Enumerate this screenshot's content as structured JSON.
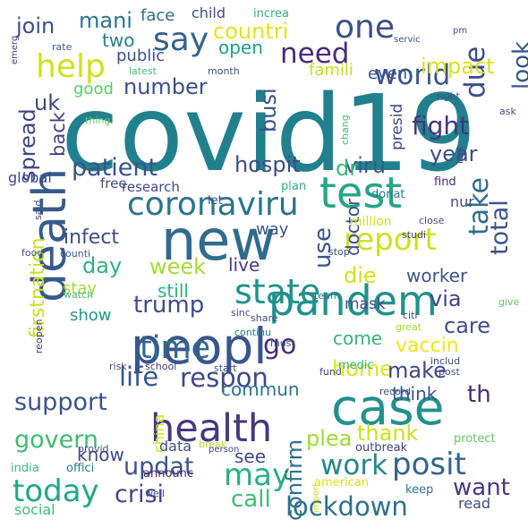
{
  "words": [
    {
      "text": "covid19",
      "color": "#21808d",
      "vertical": false
    },
    {
      "text": "new",
      "color": "#2e6c8e",
      "vertical": false
    },
    {
      "text": "peopl",
      "color": "#39568c",
      "vertical": false
    },
    {
      "text": "case",
      "color": "#22908c",
      "vertical": false
    },
    {
      "text": "test",
      "color": "#24a785",
      "vertical": false
    },
    {
      "text": "death",
      "color": "#375a8c",
      "vertical": true
    },
    {
      "text": "pandem",
      "color": "#22908c",
      "vertical": false
    },
    {
      "text": "health",
      "color": "#453781",
      "vertical": false
    },
    {
      "text": "coronaviru",
      "color": "#2c738e",
      "vertical": false
    },
    {
      "text": "state",
      "color": "#20928c",
      "vertical": false
    },
    {
      "text": "report",
      "color": "#cde11d",
      "vertical": false
    },
    {
      "text": "may",
      "color": "#2ab07f",
      "vertical": false
    },
    {
      "text": "today",
      "color": "#22a785",
      "vertical": false
    },
    {
      "text": "posit",
      "color": "#33638d",
      "vertical": false
    },
    {
      "text": "time",
      "color": "#31688e",
      "vertical": false
    },
    {
      "text": "work",
      "color": "#24878e",
      "vertical": false
    },
    {
      "text": "lockdown",
      "color": "#2c718e",
      "vertical": false
    },
    {
      "text": "respon",
      "color": "#3e4a89",
      "vertical": false
    },
    {
      "text": "life",
      "color": "#39568c",
      "vertical": false
    },
    {
      "text": "support",
      "color": "#3a548c",
      "vertical": false
    },
    {
      "text": "govern",
      "color": "#3fbc73",
      "vertical": false
    },
    {
      "text": "updat",
      "color": "#3b528b",
      "vertical": false
    },
    {
      "text": "crisi",
      "color": "#3f4788",
      "vertical": false
    },
    {
      "text": "call",
      "color": "#3dbc74",
      "vertical": false
    },
    {
      "text": "want",
      "color": "#443a83",
      "vertical": false
    },
    {
      "text": "th",
      "color": "#472c7a",
      "vertical": false
    },
    {
      "text": "plea",
      "color": "#a0da39",
      "vertical": false
    },
    {
      "text": "thank",
      "color": "#cae11f",
      "vertical": false
    },
    {
      "text": "confirm",
      "color": "#2d708e",
      "vertical": true
    },
    {
      "text": "help",
      "color": "#d0e11c",
      "vertical": false
    },
    {
      "text": "say",
      "color": "#33638d",
      "vertical": false
    },
    {
      "text": "one",
      "color": "#3d4e8a",
      "vertical": false
    },
    {
      "text": "need",
      "color": "#472c7a",
      "vertical": false
    },
    {
      "text": "world",
      "color": "#3a548c",
      "vertical": false
    },
    {
      "text": "due",
      "color": "#3e4c8a",
      "vertical": true
    },
    {
      "text": "look",
      "color": "#39568c",
      "vertical": true
    },
    {
      "text": "patient",
      "color": "#3b528b",
      "vertical": false
    },
    {
      "text": "hospit",
      "color": "#3e4989",
      "vertical": false
    },
    {
      "text": "viru",
      "color": "#38598c",
      "vertical": false
    },
    {
      "text": "dr",
      "color": "#35b779",
      "vertical": false
    },
    {
      "text": "fight",
      "color": "#46337f",
      "vertical": false
    },
    {
      "text": "year",
      "color": "#3d4d8a",
      "vertical": false
    },
    {
      "text": "take",
      "color": "#2f6c8e",
      "vertical": true
    },
    {
      "text": "total",
      "color": "#3a548c",
      "vertical": true
    },
    {
      "text": "busi",
      "color": "#3a538b",
      "vertical": true
    },
    {
      "text": "presid",
      "color": "#404588",
      "vertical": true
    },
    {
      "text": "impact",
      "color": "#d8e219",
      "vertical": false
    },
    {
      "text": "join",
      "color": "#3c4f8a",
      "vertical": false
    },
    {
      "text": "mani",
      "color": "#2a768e",
      "vertical": false
    },
    {
      "text": "countri",
      "color": "#e5e419",
      "vertical": false
    },
    {
      "text": "open",
      "color": "#1f9e89",
      "vertical": false
    },
    {
      "text": "face",
      "color": "#306a8e",
      "vertical": false
    },
    {
      "text": "child",
      "color": "#3e4c8a",
      "vertical": false
    },
    {
      "text": "increa",
      "color": "#2db27d",
      "vertical": false
    },
    {
      "text": "two",
      "color": "#2a7b8e",
      "vertical": false
    },
    {
      "text": "public",
      "color": "#3b528b",
      "vertical": false
    },
    {
      "text": "famili",
      "color": "#c2df23",
      "vertical": false
    },
    {
      "text": "even",
      "color": "#3c508b",
      "vertical": false
    },
    {
      "text": "number",
      "color": "#3c4f8a",
      "vertical": false
    },
    {
      "text": "good",
      "color": "#5ec962",
      "vertical": false
    },
    {
      "text": "uk",
      "color": "#3f4889",
      "vertical": false
    },
    {
      "text": "spread",
      "color": "#404387",
      "vertical": true
    },
    {
      "text": "back",
      "color": "#433e85",
      "vertical": true
    },
    {
      "text": "global",
      "color": "#3e4989",
      "vertical": false
    },
    {
      "text": "free",
      "color": "#3e4c8a",
      "vertical": false
    },
    {
      "text": "research",
      "color": "#3e4a89",
      "vertical": false
    },
    {
      "text": "let",
      "color": "#3b528b",
      "vertical": false
    },
    {
      "text": "plan",
      "color": "#2db27d",
      "vertical": false
    },
    {
      "text": "donat",
      "color": "#2a788e",
      "vertical": false
    },
    {
      "text": "find",
      "color": "#482475",
      "vertical": false
    },
    {
      "text": "nur",
      "color": "#3e4a89",
      "vertical": false
    },
    {
      "text": "infect",
      "color": "#3e4c8a",
      "vertical": false
    },
    {
      "text": "day",
      "color": "#2db27d",
      "vertical": false
    },
    {
      "text": "week",
      "color": "#a5db36",
      "vertical": false
    },
    {
      "text": "use",
      "color": "#3b528b",
      "vertical": true
    },
    {
      "text": "way",
      "color": "#3c4f8a",
      "vertical": false
    },
    {
      "text": "live",
      "color": "#433d84",
      "vertical": false
    },
    {
      "text": "doctor",
      "color": "#3d4e8a",
      "vertical": true
    },
    {
      "text": "million",
      "color": "#cde11d",
      "vertical": false
    },
    {
      "text": "worker",
      "color": "#3b528b",
      "vertical": false
    },
    {
      "text": "die",
      "color": "#d2e21b",
      "vertical": false
    },
    {
      "text": "via",
      "color": "#414487",
      "vertical": false
    },
    {
      "text": "care",
      "color": "#3d4d8a",
      "vertical": false
    },
    {
      "text": "trump",
      "color": "#3e4c8a",
      "vertical": false
    },
    {
      "text": "still",
      "color": "#2db27d",
      "vertical": false
    },
    {
      "text": "stay",
      "color": "#a2da37",
      "vertical": false
    },
    {
      "text": "show",
      "color": "#1f9a8a",
      "vertical": false
    },
    {
      "text": "mask",
      "color": "#3d4e8a",
      "vertical": false
    },
    {
      "text": "come",
      "color": "#32b67a",
      "vertical": false
    },
    {
      "text": "vaccin",
      "color": "#f1e51d",
      "vertical": false
    },
    {
      "text": "go",
      "color": "#472c7a",
      "vertical": false
    },
    {
      "text": "home",
      "color": "#e2e418",
      "vertical": false
    },
    {
      "text": "make",
      "color": "#404588",
      "vertical": false
    },
    {
      "text": "think",
      "color": "#3b528b",
      "vertical": false
    },
    {
      "text": "commun",
      "color": "#2c738e",
      "vertical": false
    },
    {
      "text": "firstnation",
      "color": "#cae11f",
      "vertical": true
    },
    {
      "text": "know",
      "color": "#3e4989",
      "vertical": false
    },
    {
      "text": "see",
      "color": "#3e4989",
      "vertical": false
    },
    {
      "text": "china",
      "color": "#cde11d",
      "vertical": true
    },
    {
      "text": "social",
      "color": "#3fbc73",
      "vertical": false
    },
    {
      "text": "data",
      "color": "#3b528b",
      "vertical": false
    },
    {
      "text": "read",
      "color": "#3e4c8a",
      "vertical": false
    },
    {
      "text": "keep",
      "color": "#2a788e",
      "vertical": false
    },
    {
      "text": "american",
      "color": "#d5e21a",
      "vertical": false
    },
    {
      "text": "protect",
      "color": "#5ec962",
      "vertical": false
    },
    {
      "text": "outbreak",
      "color": "#414487",
      "vertical": false
    },
    {
      "text": "india",
      "color": "#3fbc73",
      "vertical": false
    },
    {
      "text": "offici",
      "color": "#2a788e",
      "vertical": false
    },
    {
      "text": "announc",
      "color": "#482475",
      "vertical": false
    },
    {
      "text": "well",
      "color": "#3b528b",
      "vertical": false
    },
    {
      "text": "break",
      "color": "#b5de2b",
      "vertical": false
    },
    {
      "text": "provid",
      "color": "#3e4a89",
      "vertical": false
    },
    {
      "text": "person",
      "color": "#3e4989",
      "vertical": false
    },
    {
      "text": "medic",
      "color": "#2db27d",
      "vertical": false
    },
    {
      "text": "record",
      "color": "#3b528b",
      "vertical": false
    },
    {
      "text": "includ",
      "color": "#414487",
      "vertical": false
    },
    {
      "text": "post",
      "color": "#3e4a89",
      "vertical": false
    },
    {
      "text": "fund",
      "color": "#3d4e8a",
      "vertical": false
    },
    {
      "text": "start",
      "color": "#3b528b",
      "vertical": false
    },
    {
      "text": "school",
      "color": "#443a83",
      "vertical": false
    },
    {
      "text": "risk",
      "color": "#3e4c8a",
      "vertical": false
    },
    {
      "text": "must",
      "color": "#3b528b",
      "vertical": false
    },
    {
      "text": "share",
      "color": "#3e4c8a",
      "vertical": false
    },
    {
      "text": "sinc",
      "color": "#3d4e8a",
      "vertical": false
    },
    {
      "text": "continu",
      "color": "#2a788e",
      "vertical": false
    },
    {
      "text": "citi",
      "color": "#3e4a89",
      "vertical": false
    },
    {
      "text": "great",
      "color": "#a0da39",
      "vertical": false
    },
    {
      "text": "give",
      "color": "#5ec962",
      "vertical": false
    },
    {
      "text": "team",
      "color": "#2a788e",
      "vertical": false
    },
    {
      "text": "stop",
      "color": "#3e4c8a",
      "vertical": false
    },
    {
      "text": "studi",
      "color": "#3e4989",
      "vertical": false
    },
    {
      "text": "watch",
      "color": "#3fbc73",
      "vertical": false
    },
    {
      "text": "food",
      "color": "#3b528b",
      "vertical": false
    },
    {
      "text": "counti",
      "color": "#3b528b",
      "vertical": false
    },
    {
      "text": "close",
      "color": "#3e4c8a",
      "vertical": false
    },
    {
      "text": "said",
      "color": "#3e4a89",
      "vertical": true
    },
    {
      "text": "reopen",
      "color": "#443a83",
      "vertical": true
    },
    {
      "text": "thing",
      "color": "#5ec962",
      "vertical": false
    },
    {
      "text": "chang",
      "color": "#3fbc73",
      "vertical": true
    },
    {
      "text": "last",
      "color": "#3e4989",
      "vertical": true
    },
    {
      "text": "right",
      "color": "#3b528b",
      "vertical": false
    },
    {
      "text": "ask",
      "color": "#3e4c8a",
      "vertical": false
    },
    {
      "text": "latest",
      "color": "#3fbc73",
      "vertical": false
    },
    {
      "text": "month",
      "color": "#3b528b",
      "vertical": false
    },
    {
      "text": "rate",
      "color": "#3b528b",
      "vertical": false
    },
    {
      "text": "emerg",
      "color": "#3e4989",
      "vertical": true
    },
    {
      "text": "servic",
      "color": "#3b528b",
      "vertical": false
    },
    {
      "text": "pm",
      "color": "#3e4a89",
      "vertical": false
    },
    {
      "text": "import",
      "color": "#cde11d",
      "vertical": true
    }
  ]
}
